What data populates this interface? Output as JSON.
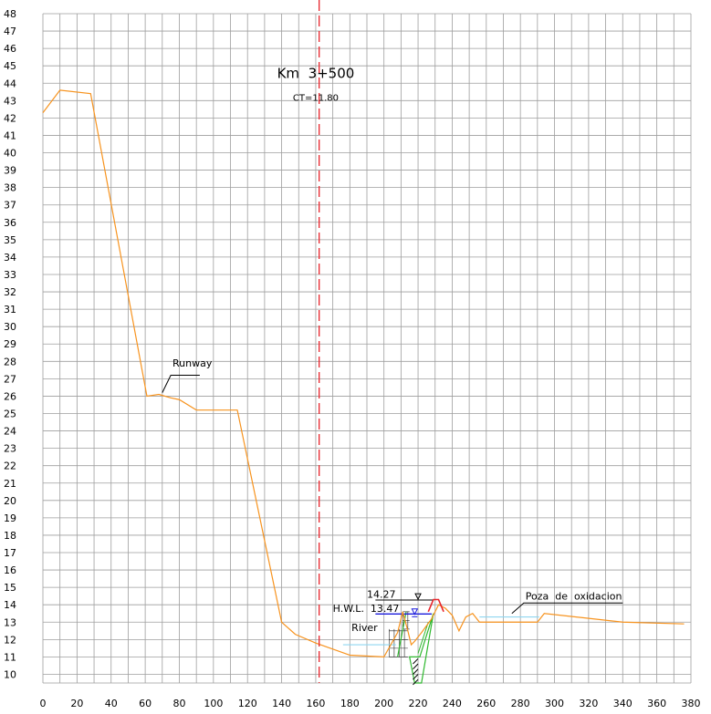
{
  "chart_data": {
    "type": "line",
    "title": "Km  3+500",
    "subtitle": "CT=11.80",
    "xlabel": "",
    "ylabel": "",
    "xlim": [
      0,
      380
    ],
    "ylim": [
      9.5,
      48
    ],
    "x_ticks": [
      "0",
      "20",
      "40",
      "60",
      "80",
      "100",
      "120",
      "140",
      "160",
      "180",
      "200",
      "220",
      "240",
      "260",
      "280",
      "300",
      "320",
      "340",
      "360",
      "380"
    ],
    "y_ticks": [
      "10",
      "11",
      "12",
      "13",
      "14",
      "15",
      "16",
      "17",
      "18",
      "19",
      "20",
      "21",
      "22",
      "23",
      "24",
      "25",
      "26",
      "27",
      "28",
      "29",
      "30",
      "31",
      "32",
      "33",
      "34",
      "35",
      "36",
      "37",
      "38",
      "39",
      "40",
      "41",
      "42",
      "43",
      "44",
      "45",
      "46",
      "47",
      "48"
    ],
    "grid": true,
    "axis_x_value": 162,
    "ground_profile": {
      "x": [
        0,
        10,
        28,
        61,
        68,
        75,
        80,
        90,
        114,
        140,
        148,
        160,
        180,
        200,
        208,
        211,
        214,
        216,
        218,
        222,
        228,
        232,
        236,
        240,
        244,
        248,
        252,
        256,
        290,
        294,
        340,
        376
      ],
      "y": [
        42.3,
        43.6,
        43.4,
        26.0,
        26.1,
        25.9,
        25.8,
        25.2,
        25.2,
        13.0,
        12.3,
        11.8,
        11.1,
        11.0,
        12.4,
        13.6,
        12.5,
        11.7,
        11.9,
        12.4,
        13.2,
        14.0,
        13.8,
        13.4,
        12.5,
        13.3,
        13.5,
        13.0,
        13.0,
        13.5,
        13.0,
        12.9
      ]
    },
    "design_section": {
      "x": [
        226,
        229,
        232,
        235
      ],
      "y": [
        13.6,
        14.3,
        14.3,
        13.6
      ]
    },
    "water_levels": [
      {
        "label": "14.27",
        "value": 14.27,
        "x_range": [
          195,
          229
        ]
      },
      {
        "label": "H.W.L.  13.47",
        "value": 13.47,
        "x_range": [
          195,
          228
        ]
      }
    ],
    "annotations": {
      "runway": "Runway",
      "river": "River",
      "pond": "Poza  de  oxidacion"
    },
    "colors": {
      "ground": "#f7931e",
      "axis": "#e8242b",
      "grid": "#9e9e9e",
      "design": "#e8242b",
      "hwl": "#1a1adb",
      "level_1427": "#7a7a7a",
      "water": "#8fd6f0",
      "fill": "#2fb82f"
    }
  }
}
